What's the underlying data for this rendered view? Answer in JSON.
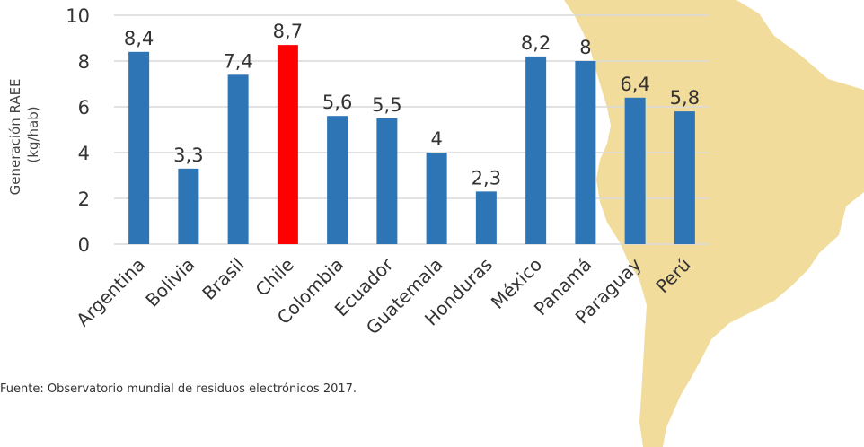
{
  "colors": {
    "bar": "#2E75B6",
    "highlight": "#FF0000",
    "map_fill": "#F2DC9B",
    "grid": "#D9D9D9"
  },
  "chart_data": {
    "type": "bar",
    "categories": [
      "Argentina",
      "Bolivia",
      "Brasil",
      "Chile",
      "Colombia",
      "Ecuador",
      "Guatemala",
      "Honduras",
      "México",
      "Panamá",
      "Paraguay",
      "Perú"
    ],
    "values": [
      8.4,
      3.3,
      7.4,
      8.7,
      5.6,
      5.5,
      4.0,
      2.3,
      8.2,
      8.0,
      6.4,
      5.8
    ],
    "data_labels": [
      "8,4",
      "3,3",
      "7,4",
      "8,7",
      "5,6",
      "5,5",
      "4",
      "2,3",
      "8,2",
      "8",
      "6,4",
      "5,8"
    ],
    "highlight_category": "Chile",
    "ylabel_lines": [
      "Generación RAEE",
      "(kg/hab)"
    ],
    "ylim": [
      0,
      10
    ],
    "yticks": [
      0,
      2,
      4,
      6,
      8,
      10
    ],
    "grid": true,
    "legend": "none"
  },
  "source": "Fuente: Observatorio mundial de residuos electrónicos 2017."
}
